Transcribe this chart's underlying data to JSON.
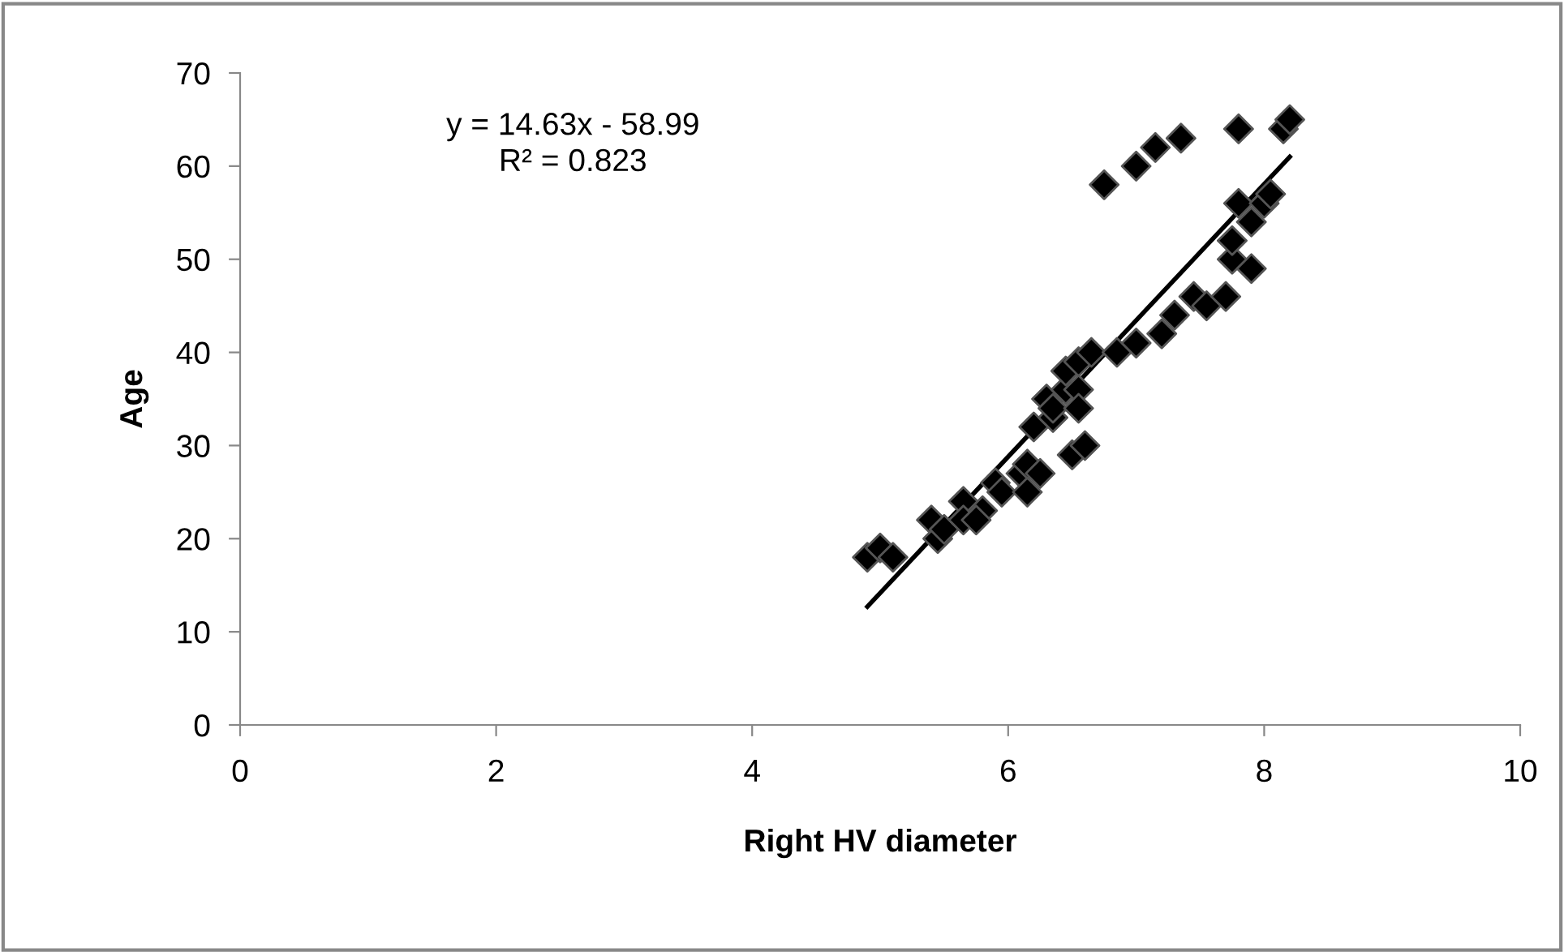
{
  "chart_data": {
    "type": "scatter",
    "xlabel": "Right HV diameter",
    "ylabel": "Age",
    "xlim": [
      0,
      10
    ],
    "xticks": [
      0,
      2,
      4,
      6,
      8,
      10
    ],
    "ylim": [
      0,
      70
    ],
    "yticks": [
      0,
      10,
      20,
      30,
      40,
      50,
      60,
      70
    ],
    "grid": false,
    "legend": false,
    "annotations": [
      "y = 14.63x - 58.99\nR² = 0.823"
    ],
    "series": [
      {
        "marker": "diamond",
        "color": "#000000",
        "x": [
          4.9,
          5.0,
          5.1,
          5.4,
          5.45,
          5.5,
          5.65,
          5.65,
          5.8,
          5.75,
          5.9,
          5.95,
          6.1,
          6.15,
          6.15,
          6.25,
          6.2,
          6.3,
          6.35,
          6.35,
          6.45,
          6.45,
          6.55,
          6.55,
          6.55,
          6.5,
          6.6,
          6.65,
          6.85,
          7.0,
          7.2,
          7.3,
          7.45,
          7.55,
          7.7,
          7.75,
          7.75,
          7.8,
          7.9,
          7.9,
          8.0,
          8.05,
          6.75,
          7.0,
          7.15,
          7.35,
          7.8,
          8.15,
          8.2
        ],
        "values": [
          18,
          19,
          18,
          22,
          20,
          21,
          24,
          22,
          23,
          22,
          26,
          25,
          27,
          25,
          28,
          27,
          32,
          35,
          33,
          34,
          36,
          38,
          39,
          36,
          34,
          29,
          30,
          40,
          40,
          41,
          42,
          44,
          46,
          45,
          46,
          50,
          52,
          56,
          49,
          54,
          56,
          57,
          58,
          60,
          62,
          63,
          64,
          64,
          65
        ]
      },
      {
        "type": "line",
        "marker": "none",
        "line_style": "solid",
        "color": "#000000",
        "x": [
          4.9,
          8.2
        ],
        "values": [
          12.7,
          61.0
        ]
      }
    ]
  }
}
